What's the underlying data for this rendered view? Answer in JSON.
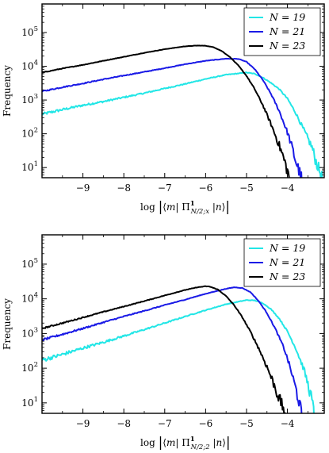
{
  "figure": {
    "panels": 2
  },
  "chart_data": [
    {
      "type": "line",
      "title": "",
      "xlabel": "log |⟨m| Π¹_{N/2;x} |n⟩|",
      "ylabel": "Frequency",
      "xlim": [
        -10,
        -3.1
      ],
      "ylim": [
        5,
        700000
      ],
      "yscale": "log",
      "xticks": [
        -9,
        -8,
        -7,
        -6,
        -5,
        -4
      ],
      "xtick_labels": [
        "−9",
        "−8",
        "−7",
        "−6",
        "−5",
        "−4"
      ],
      "yticks": [
        10,
        100,
        1000,
        10000,
        100000
      ],
      "grid": false,
      "legend_position": "top-right",
      "series": [
        {
          "name": "N = 19",
          "color": "#22e6e6",
          "x": [
            -10,
            -9.5,
            -9,
            -8.5,
            -8,
            -7.5,
            -7,
            -6.5,
            -6,
            -5.5,
            -5,
            -4.8,
            -4.6,
            -4.4,
            -4.2,
            -4.0,
            -3.8,
            -3.6,
            -3.4,
            -3.3,
            -3.2,
            -3.15
          ],
          "y": [
            380,
            520,
            700,
            900,
            1200,
            1600,
            2200,
            3000,
            4200,
            5600,
            6500,
            6000,
            4600,
            3200,
            2100,
            1100,
            420,
            130,
            40,
            15,
            7,
            5
          ]
        },
        {
          "name": "N = 21",
          "color": "#1a1ae6",
          "x": [
            -10,
            -9.5,
            -9,
            -8.5,
            -8,
            -7.5,
            -7,
            -6.5,
            -6,
            -5.5,
            -5.2,
            -5,
            -4.8,
            -4.6,
            -4.4,
            -4.2,
            -4.0,
            -3.9,
            -3.8,
            -3.7,
            -3.65
          ],
          "y": [
            1800,
            2400,
            3100,
            4100,
            5300,
            6800,
            8800,
            11500,
            14500,
            16800,
            16500,
            13500,
            8200,
            3900,
            1500,
            470,
            110,
            45,
            16,
            7,
            5
          ]
        },
        {
          "name": "N = 23",
          "color": "#000000",
          "x": [
            -10,
            -9.5,
            -9,
            -8.5,
            -8,
            -7.5,
            -7,
            -6.5,
            -6.2,
            -6.0,
            -5.8,
            -5.6,
            -5.4,
            -5.2,
            -5.0,
            -4.8,
            -4.6,
            -4.4,
            -4.2,
            -4.1,
            -4.0,
            -3.95
          ],
          "y": [
            6500,
            8600,
            11000,
            14500,
            19000,
            25000,
            32000,
            39000,
            41000,
            40500,
            36500,
            28000,
            18500,
            10500,
            5200,
            2100,
            700,
            190,
            45,
            20,
            8,
            5
          ]
        }
      ]
    },
    {
      "type": "line",
      "title": "",
      "xlabel": "log |⟨m| Π¹_{N/2;2} |n⟩|",
      "ylabel": "Frequency",
      "xlim": [
        -10,
        -3.1
      ],
      "ylim": [
        5,
        700000
      ],
      "yscale": "log",
      "xticks": [
        -9,
        -8,
        -7,
        -6,
        -5,
        -4
      ],
      "xtick_labels": [
        "−9",
        "−8",
        "−7",
        "−6",
        "−5",
        "−4"
      ],
      "yticks": [
        10,
        100,
        1000,
        10000,
        100000
      ],
      "grid": false,
      "legend_position": "top-right",
      "series": [
        {
          "name": "N = 19",
          "color": "#22e6e6",
          "x": [
            -10,
            -9.5,
            -9,
            -8.5,
            -8,
            -7.5,
            -7,
            -6.5,
            -6,
            -5.5,
            -5,
            -4.8,
            -4.6,
            -4.4,
            -4.2,
            -4.0,
            -3.8,
            -3.6,
            -3.5,
            -3.4,
            -3.35
          ],
          "y": [
            170,
            250,
            380,
            560,
            850,
            1300,
            2000,
            3100,
            4700,
            7000,
            9200,
            9000,
            7500,
            5000,
            2700,
            1150,
            380,
            95,
            35,
            12,
            5
          ]
        },
        {
          "name": "N = 21",
          "color": "#1a1ae6",
          "x": [
            -10,
            -9.5,
            -9,
            -8.5,
            -8,
            -7.5,
            -7,
            -6.5,
            -6,
            -5.5,
            -5.3,
            -5.1,
            -4.9,
            -4.7,
            -4.5,
            -4.3,
            -4.1,
            -4.0,
            -3.9,
            -3.8,
            -3.7,
            -3.65
          ],
          "y": [
            650,
            950,
            1400,
            2100,
            3100,
            4500,
            6600,
            9500,
            14000,
            19500,
            21500,
            20500,
            15500,
            8500,
            3900,
            1400,
            420,
            190,
            75,
            27,
            9,
            5
          ]
        },
        {
          "name": "N = 23",
          "color": "#000000",
          "x": [
            -10,
            -9.5,
            -9,
            -8.5,
            -8,
            -7.5,
            -7,
            -6.5,
            -6.2,
            -6.0,
            -5.9,
            -5.7,
            -5.5,
            -5.3,
            -5.1,
            -4.9,
            -4.7,
            -4.5,
            -4.3,
            -4.2,
            -4.1,
            -4.05
          ],
          "y": [
            1400,
            2000,
            2900,
            4200,
            6000,
            8600,
            12500,
            18000,
            21500,
            23000,
            22500,
            18500,
            12000,
            6500,
            2900,
            1100,
            370,
            110,
            28,
            13,
            7,
            5
          ]
        }
      ]
    }
  ]
}
